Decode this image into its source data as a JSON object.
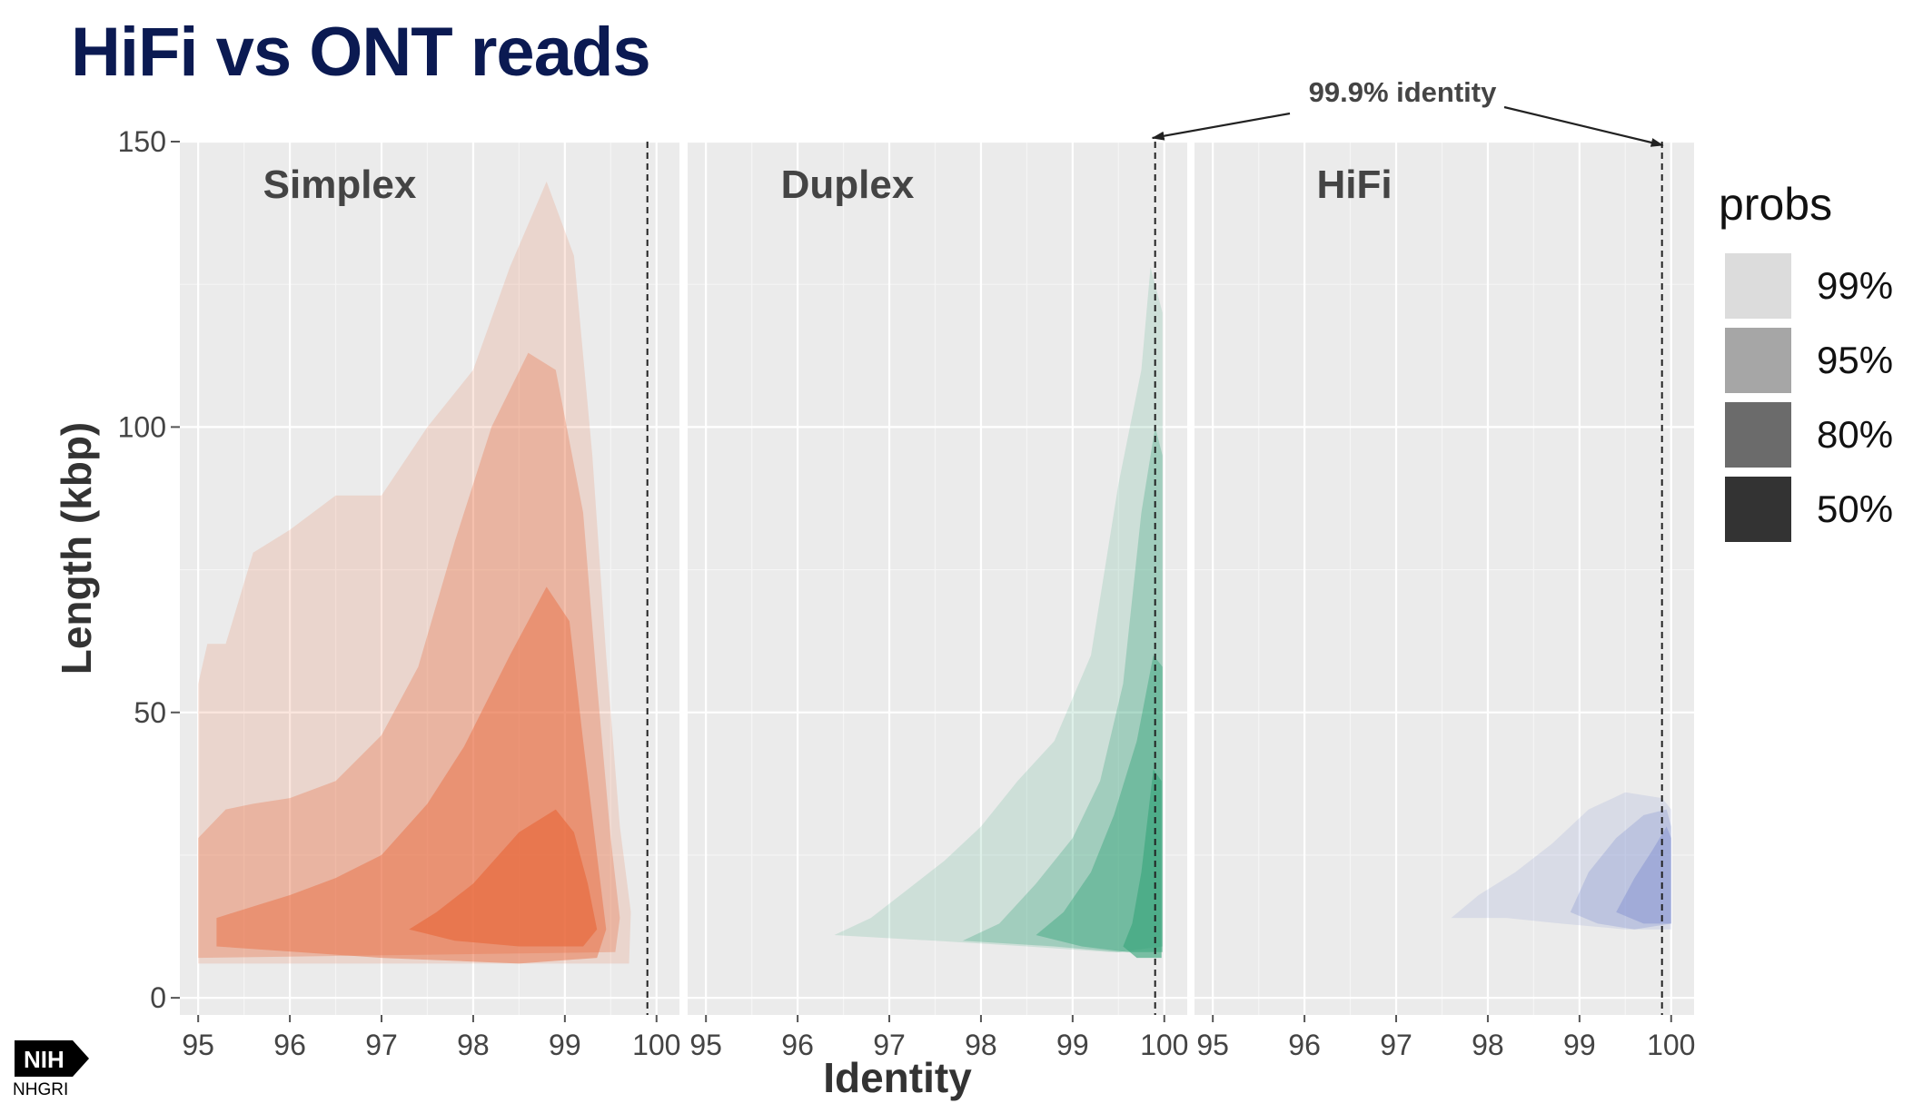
{
  "page": {
    "title": "HiFi vs ONT reads",
    "logo_text": "NIH",
    "logo_subtext": "NHGRI"
  },
  "chart_data": {
    "type": "density-contour",
    "xlabel": "Identity",
    "ylabel": "Length (kbp)",
    "xlim": [
      94.8,
      100.25
    ],
    "ylim": [
      -3,
      150
    ],
    "xticks": [
      95,
      96,
      97,
      98,
      99,
      100
    ],
    "yticks": [
      0,
      50,
      100,
      150
    ],
    "grid": true,
    "reference_line": {
      "x": 99.9,
      "label": "99.9% identity",
      "style": "dashed"
    },
    "legend": {
      "title": "probs",
      "position": "right",
      "levels": [
        "99%",
        "95%",
        "80%",
        "50%"
      ],
      "swatch_colors": [
        "#dcdcdc",
        "#a6a6a6",
        "#6b6b6b",
        "#333333"
      ]
    },
    "panels": [
      {
        "name": "Simplex",
        "color": "#e8693c",
        "regions": [
          {
            "level": "99%",
            "polygon": [
              [
                95.0,
                6
              ],
              [
                95.0,
                55
              ],
              [
                95.1,
                62
              ],
              [
                95.3,
                62
              ],
              [
                95.6,
                78
              ],
              [
                96.0,
                82
              ],
              [
                96.5,
                88
              ],
              [
                97.0,
                88
              ],
              [
                97.5,
                100
              ],
              [
                98.0,
                110
              ],
              [
                98.4,
                128
              ],
              [
                98.8,
                143
              ],
              [
                99.1,
                130
              ],
              [
                99.3,
                95
              ],
              [
                99.45,
                60
              ],
              [
                99.6,
                30
              ],
              [
                99.72,
                15
              ],
              [
                99.7,
                6
              ]
            ]
          },
          {
            "level": "95%",
            "polygon": [
              [
                95.0,
                7
              ],
              [
                95.0,
                28
              ],
              [
                95.3,
                33
              ],
              [
                95.6,
                34
              ],
              [
                96.0,
                35
              ],
              [
                96.5,
                38
              ],
              [
                97.0,
                46
              ],
              [
                97.4,
                58
              ],
              [
                97.8,
                80
              ],
              [
                98.2,
                100
              ],
              [
                98.6,
                113
              ],
              [
                98.9,
                110
              ],
              [
                99.2,
                85
              ],
              [
                99.35,
                55
              ],
              [
                99.5,
                28
              ],
              [
                99.6,
                14
              ],
              [
                99.55,
                8
              ]
            ]
          },
          {
            "level": "80%",
            "polygon": [
              [
                95.2,
                9
              ],
              [
                95.2,
                14
              ],
              [
                95.6,
                16
              ],
              [
                96.0,
                18
              ],
              [
                96.5,
                21
              ],
              [
                97.0,
                25
              ],
              [
                97.5,
                34
              ],
              [
                97.9,
                44
              ],
              [
                98.4,
                60
              ],
              [
                98.8,
                72
              ],
              [
                99.05,
                66
              ],
              [
                99.2,
                45
              ],
              [
                99.35,
                25
              ],
              [
                99.45,
                12
              ],
              [
                99.35,
                7
              ],
              [
                98.5,
                6
              ],
              [
                97.0,
                7
              ]
            ]
          },
          {
            "level": "50%",
            "polygon": [
              [
                97.3,
                12
              ],
              [
                97.6,
                15
              ],
              [
                98.0,
                20
              ],
              [
                98.5,
                29
              ],
              [
                98.9,
                33
              ],
              [
                99.1,
                29
              ],
              [
                99.25,
                20
              ],
              [
                99.35,
                12
              ],
              [
                99.2,
                9
              ],
              [
                98.5,
                9
              ],
              [
                97.8,
                10
              ]
            ]
          }
        ]
      },
      {
        "name": "Duplex",
        "color": "#3aa67d",
        "regions": [
          {
            "level": "99%",
            "polygon": [
              [
                96.4,
                11
              ],
              [
                96.8,
                14
              ],
              [
                97.2,
                19
              ],
              [
                97.6,
                24
              ],
              [
                98.0,
                30
              ],
              [
                98.4,
                38
              ],
              [
                98.8,
                45
              ],
              [
                99.2,
                60
              ],
              [
                99.5,
                90
              ],
              [
                99.75,
                110
              ],
              [
                99.85,
                128
              ],
              [
                99.98,
                120
              ],
              [
                99.98,
                8
              ],
              [
                99.4,
                8
              ],
              [
                98.5,
                9
              ],
              [
                97.5,
                10
              ]
            ]
          },
          {
            "level": "95%",
            "polygon": [
              [
                97.8,
                10
              ],
              [
                98.2,
                13
              ],
              [
                98.6,
                20
              ],
              [
                99.0,
                28
              ],
              [
                99.3,
                38
              ],
              [
                99.55,
                55
              ],
              [
                99.75,
                85
              ],
              [
                99.9,
                100
              ],
              [
                99.98,
                95
              ],
              [
                99.98,
                9
              ],
              [
                99.5,
                8
              ],
              [
                98.8,
                9
              ]
            ]
          },
          {
            "level": "80%",
            "polygon": [
              [
                98.6,
                11
              ],
              [
                98.9,
                15
              ],
              [
                99.2,
                22
              ],
              [
                99.45,
                32
              ],
              [
                99.7,
                45
              ],
              [
                99.88,
                60
              ],
              [
                99.98,
                58
              ],
              [
                99.98,
                8
              ],
              [
                99.6,
                8
              ],
              [
                99.1,
                9
              ]
            ]
          },
          {
            "level": "50%",
            "polygon": [
              [
                99.55,
                9
              ],
              [
                99.65,
                13
              ],
              [
                99.75,
                22
              ],
              [
                99.88,
                40
              ],
              [
                99.97,
                38
              ],
              [
                99.97,
                7
              ],
              [
                99.7,
                7
              ]
            ]
          }
        ]
      },
      {
        "name": "HiFi",
        "color": "#7f8fd0",
        "regions": [
          {
            "level": "99%",
            "polygon": [
              [
                97.6,
                14
              ],
              [
                97.9,
                18
              ],
              [
                98.3,
                22
              ],
              [
                98.7,
                27
              ],
              [
                99.1,
                33
              ],
              [
                99.5,
                36
              ],
              [
                99.9,
                35
              ],
              [
                100.0,
                33
              ],
              [
                100.0,
                12
              ],
              [
                99.5,
                12
              ],
              [
                98.8,
                13
              ],
              [
                98.2,
                14
              ]
            ]
          },
          {
            "level": "95%",
            "polygon": [
              [
                98.9,
                15
              ],
              [
                99.1,
                22
              ],
              [
                99.4,
                28
              ],
              [
                99.7,
                32
              ],
              [
                99.95,
                33
              ],
              [
                100.0,
                30
              ],
              [
                100.0,
                13
              ],
              [
                99.6,
                12
              ],
              [
                99.2,
                13
              ]
            ]
          },
          {
            "level": "80%",
            "polygon": [
              [
                99.4,
                15
              ],
              [
                99.6,
                21
              ],
              [
                99.8,
                26
              ],
              [
                99.95,
                30
              ],
              [
                100.0,
                28
              ],
              [
                100.0,
                13
              ],
              [
                99.7,
                13
              ]
            ]
          }
        ]
      }
    ]
  }
}
